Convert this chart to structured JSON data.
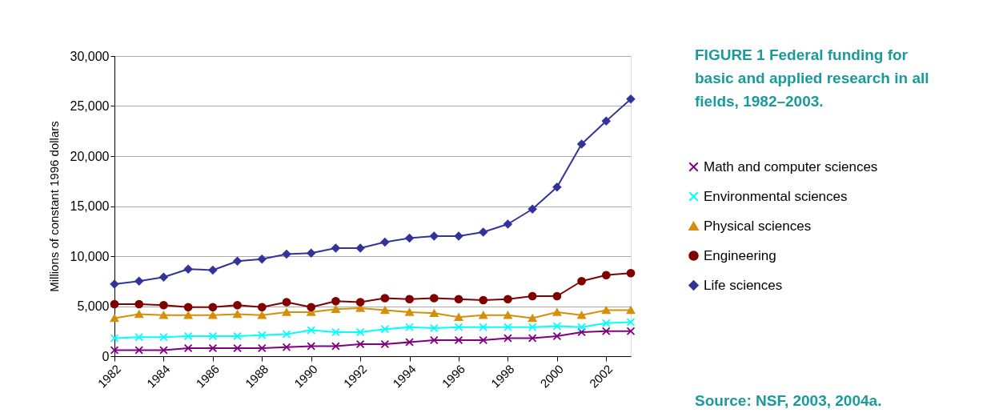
{
  "chart_data": {
    "type": "line",
    "title": "FIGURE 1   Federal funding for basic and applied research in all fields, 1982–2003.",
    "ylabel": "Millions of constant 1996 dollars",
    "annotations": [
      "Source:  NSF, 2003, 2004a."
    ],
    "x": [
      1982,
      1983,
      1984,
      1985,
      1986,
      1987,
      1988,
      1989,
      1990,
      1991,
      1992,
      1993,
      1994,
      1995,
      1996,
      1997,
      1998,
      1999,
      2000,
      2001,
      2002,
      2003
    ],
    "series": [
      {
        "name": "Math and computer sciences",
        "color": "#800080",
        "marker": "cross",
        "values": [
          600,
          600,
          600,
          800,
          800,
          800,
          800,
          900,
          1000,
          1000,
          1200,
          1200,
          1400,
          1600,
          1600,
          1600,
          1800,
          1800,
          2000,
          2400,
          2500,
          2500
        ]
      },
      {
        "name": "Environmental sciences",
        "color": "#00ffff",
        "marker": "cross",
        "values": [
          1800,
          1900,
          1900,
          2000,
          2000,
          2000,
          2100,
          2200,
          2600,
          2400,
          2400,
          2700,
          2900,
          2800,
          2900,
          2900,
          2900,
          2900,
          3000,
          2900,
          3300,
          3400
        ]
      },
      {
        "name": "Physical sciences",
        "color": "#d4900a",
        "marker": "triangle",
        "values": [
          3800,
          4200,
          4100,
          4100,
          4100,
          4200,
          4100,
          4400,
          4400,
          4700,
          4800,
          4600,
          4400,
          4300,
          3900,
          4100,
          4100,
          3800,
          4400,
          4100,
          4600,
          4600
        ]
      },
      {
        "name": "Engineering",
        "color": "#800000",
        "marker": "circle",
        "values": [
          5200,
          5200,
          5100,
          4900,
          4900,
          5100,
          4900,
          5400,
          4900,
          5500,
          5400,
          5800,
          5700,
          5800,
          5700,
          5600,
          5700,
          6000,
          6000,
          7500,
          8100,
          8300
        ]
      },
      {
        "name": "Life sciences",
        "color": "#333399",
        "marker": "diamond",
        "values": [
          7200,
          7500,
          7900,
          8700,
          8600,
          9500,
          9700,
          10200,
          10300,
          10800,
          10800,
          11400,
          11800,
          12000,
          12000,
          12400,
          13200,
          14700,
          16900,
          21200,
          23500,
          25700
        ]
      }
    ],
    "xlim": [
      1982,
      2003
    ],
    "xticks": [
      1982,
      1984,
      1986,
      1988,
      1990,
      1992,
      1994,
      1996,
      1998,
      2000,
      2002
    ],
    "ylim": [
      0,
      30000
    ],
    "yticks": [
      0,
      {
        "value": 5000,
        "label": "5,000"
      },
      {
        "value": 10000,
        "label": "10,000"
      },
      {
        "value": 15000,
        "label": "15,000"
      },
      {
        "value": 20000,
        "label": "20,000"
      },
      {
        "value": 25000,
        "label": "25,000"
      },
      {
        "value": 30000,
        "label": "30,000"
      }
    ],
    "grid": "y",
    "legend": "right",
    "line_style": "solid"
  }
}
